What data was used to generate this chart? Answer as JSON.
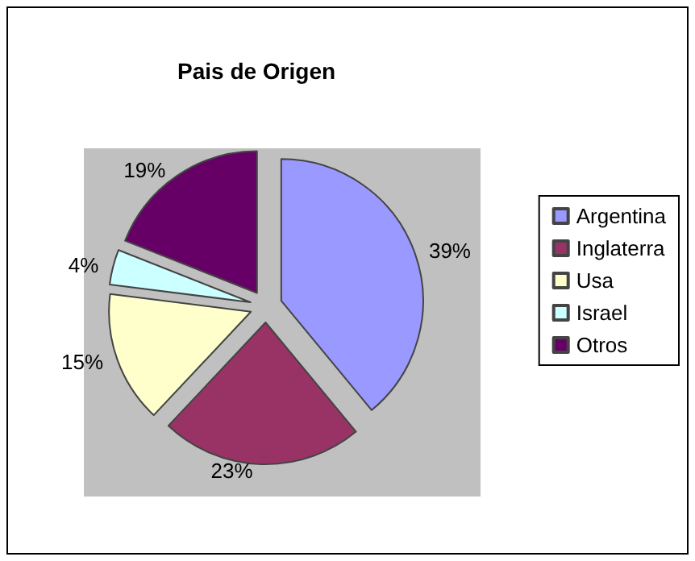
{
  "chart_data": {
    "type": "pie",
    "title": "Pais de Origen",
    "categories": [
      "Argentina",
      "Inglaterra",
      "Usa",
      "Israel",
      "Otros"
    ],
    "values": [
      39,
      23,
      15,
      4,
      19
    ],
    "colors": [
      "#9999ff",
      "#993366",
      "#ffffcc",
      "#ccffff",
      "#660066"
    ],
    "value_labels": [
      "39%",
      "23%",
      "15%",
      "4%",
      "19%"
    ],
    "legend": "right"
  }
}
